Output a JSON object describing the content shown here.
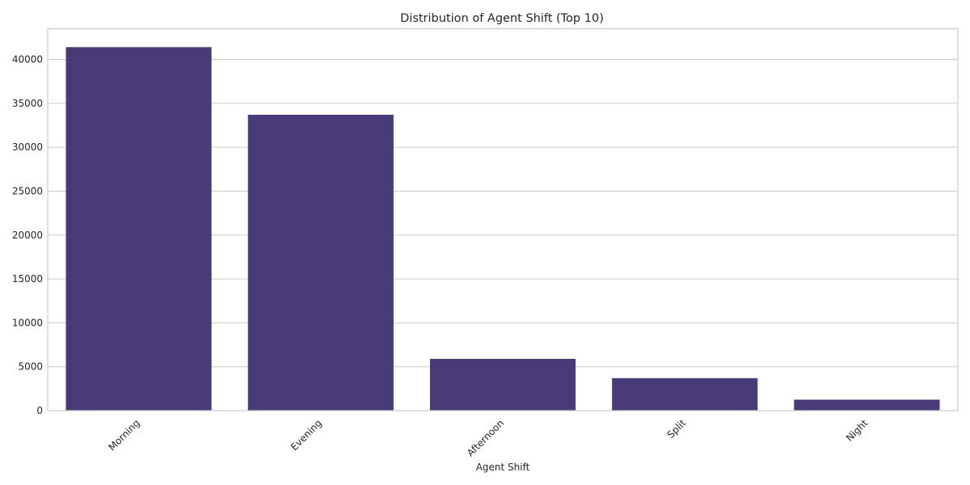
{
  "chart_data": {
    "type": "bar",
    "title": "Distribution of Agent Shift (Top 10)",
    "xlabel": "Agent Shift",
    "ylabel": "",
    "categories": [
      "Morning",
      "Evening",
      "Afternoon",
      "Split",
      "Night"
    ],
    "values": [
      41400,
      33700,
      5900,
      3700,
      1250
    ],
    "ylim": [
      0,
      43500
    ],
    "yticks": [
      0,
      5000,
      10000,
      15000,
      20000,
      25000,
      30000,
      35000,
      40000
    ],
    "grid": true,
    "legend": "none",
    "bar_color": "#483b77"
  }
}
